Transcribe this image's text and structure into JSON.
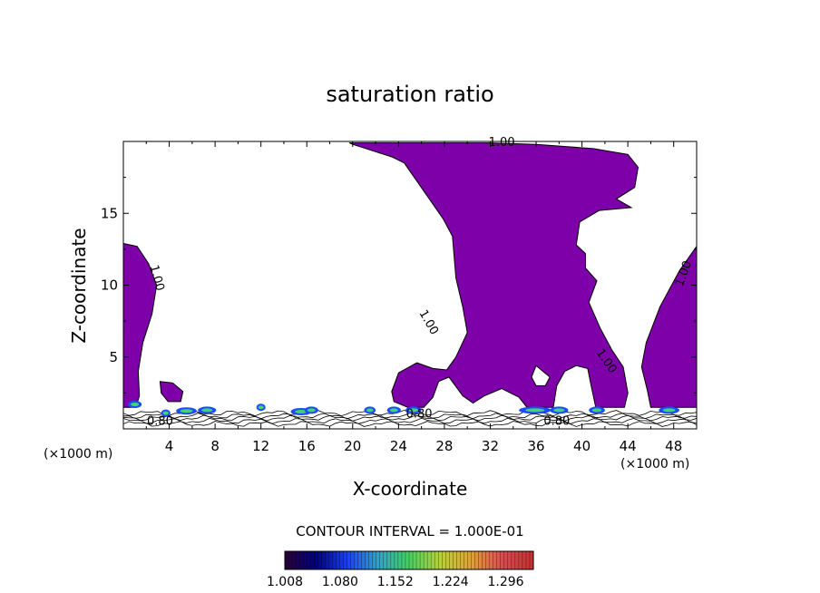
{
  "chart_data": {
    "type": "heatmap",
    "title": "saturation ratio",
    "xlabel": "X-coordinate",
    "ylabel": "Z-coordinate",
    "x_unit": "(×1000 m)",
    "y_unit": "(×1000 m)",
    "xlim": [
      0,
      50
    ],
    "ylim": [
      0,
      20
    ],
    "x_ticks": [
      4,
      8,
      12,
      16,
      20,
      24,
      28,
      32,
      36,
      40,
      44,
      48
    ],
    "x_tick_labels": [
      "4",
      "8",
      "12",
      "16",
      "20",
      "24",
      "28",
      "32",
      "36",
      "40",
      "44",
      "48"
    ],
    "y_ticks": [
      5,
      10,
      15
    ],
    "y_tick_labels": [
      "5",
      "10",
      "15"
    ],
    "contour_labels": [
      {
        "text": "1.00",
        "x": 33,
        "y": 19.9
      },
      {
        "text": "1.00",
        "x": 2.9,
        "y": 10.5
      },
      {
        "text": "1.00",
        "x": 26.6,
        "y": 7.4
      },
      {
        "text": "1.00",
        "x": 42.1,
        "y": 4.7
      },
      {
        "text": "1.00",
        "x": 48.9,
        "y": 10.8
      },
      {
        "text": "0.80",
        "x": 3.2,
        "y": 0.5
      },
      {
        "text": "0.80",
        "x": 25.8,
        "y": 1.0
      },
      {
        "text": "0.80",
        "x": 37.8,
        "y": 0.5
      }
    ],
    "contour_interval": "CONTOUR INTERVAL = 1.000E-01",
    "colorbar": {
      "min": 1.008,
      "max": 1.332,
      "tick_labels": [
        "1.008",
        "1.080",
        "1.152",
        "1.224",
        "1.296"
      ],
      "colors": [
        "#2a0033",
        "#000080",
        "#1a3cff",
        "#2aa6c8",
        "#48d060",
        "#b8d040",
        "#e0a040",
        "#d05050",
        "#c83030"
      ]
    },
    "fill_color": "#7d00a8"
  }
}
